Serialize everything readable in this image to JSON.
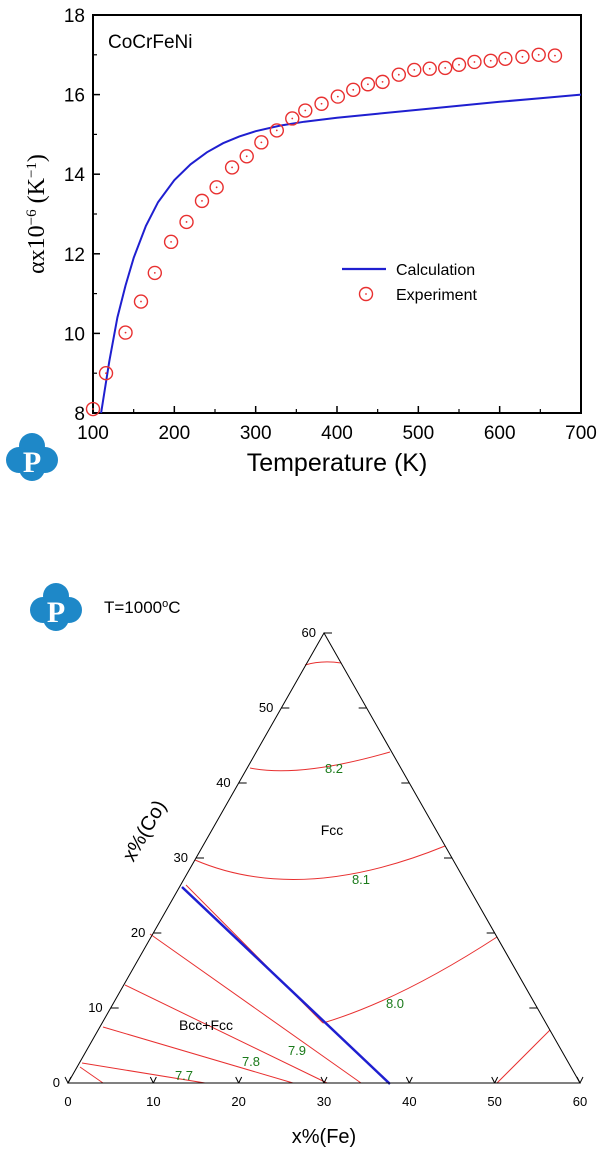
{
  "logo_letter": "P",
  "logo_color": "#1e88c8",
  "chart_data": [
    {
      "type": "line+scatter",
      "title": "CoCrFeNi",
      "xlabel": "Temperature (K)",
      "ylabel": "αx10⁻⁶ (K⁻¹)",
      "ylabel_parts": [
        "αx10",
        "−6",
        " (K",
        "−1",
        ")"
      ],
      "xlim": [
        100,
        700
      ],
      "ylim": [
        8,
        18
      ],
      "xticks": [
        100,
        200,
        300,
        400,
        500,
        600,
        700
      ],
      "yticks": [
        8,
        10,
        12,
        14,
        16,
        18
      ],
      "legend_position": "center-right",
      "series": [
        {
          "name": "Calculation",
          "style": "line",
          "color": "#1f1fd0",
          "x": [
            110,
            120,
            130,
            140,
            150,
            165,
            180,
            200,
            220,
            240,
            260,
            280,
            300,
            330,
            360,
            400,
            450,
            500,
            550,
            600,
            650,
            700
          ],
          "y": [
            8.0,
            9.3,
            10.4,
            11.2,
            11.9,
            12.7,
            13.3,
            13.85,
            14.25,
            14.55,
            14.78,
            14.95,
            15.08,
            15.22,
            15.32,
            15.42,
            15.52,
            15.62,
            15.72,
            15.82,
            15.91,
            16.0
          ]
        },
        {
          "name": "Experiment",
          "style": "open-circle",
          "color": "#e83030",
          "x": [
            100,
            116,
            140,
            159,
            176,
            196,
            215,
            234,
            252,
            271,
            289,
            307,
            326,
            345,
            361,
            381,
            401,
            420,
            438,
            456,
            476,
            495,
            514,
            533,
            550,
            569,
            589,
            607,
            628,
            648,
            668
          ],
          "y": [
            8.1,
            9.0,
            10.02,
            10.8,
            11.52,
            12.3,
            12.8,
            13.33,
            13.67,
            14.17,
            14.45,
            14.8,
            15.1,
            15.4,
            15.6,
            15.77,
            15.95,
            16.12,
            16.26,
            16.32,
            16.5,
            16.62,
            16.65,
            16.67,
            16.75,
            16.82,
            16.85,
            16.9,
            16.95,
            17.0,
            16.98
          ]
        }
      ]
    },
    {
      "type": "ternary",
      "annotation_prefix": "T=1000",
      "annotation_sup": "o",
      "annotation_suffix": "C",
      "xlabel": "x%(Fe)",
      "ylabel": "x%(Co)",
      "axis_max": 60,
      "ticks": [
        0,
        10,
        20,
        30,
        40,
        50,
        60
      ],
      "phase_boundary_color": "#1f1fd0",
      "contour_color": "#e83030",
      "phase_labels": [
        "Fcc",
        "Bcc+Fcc"
      ],
      "contour_labels": [
        "8.2",
        "8.1",
        "8.0",
        "7.9",
        "7.8",
        "7.7"
      ]
    }
  ]
}
